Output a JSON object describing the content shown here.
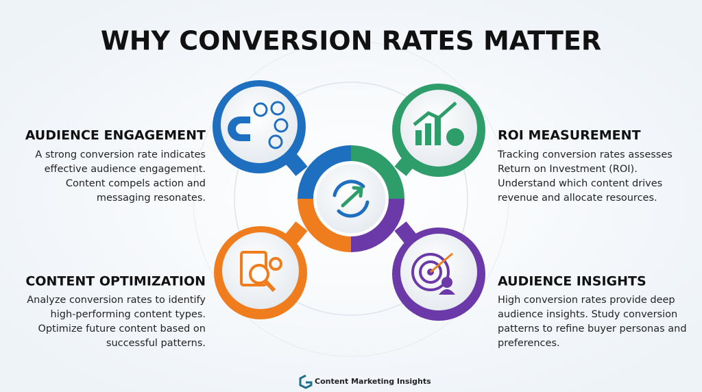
{
  "title": "WHY CONVERSION RATES MATTER",
  "sections": [
    {
      "heading": "AUDIENCE ENGAGEMENT",
      "lines": [
        "A strong conversion rate indicates",
        "effective audience engagement.",
        "Content compels action and",
        "messaging resonates."
      ]
    },
    {
      "heading": "ROI MEASUREMENT",
      "lines": [
        "Tracking conversion rates assesses",
        "Return on Investment (ROI).",
        "Understand which content drives",
        "revenue and allocate resources."
      ]
    },
    {
      "heading": "CONTENT OPTIMIZATION",
      "lines": [
        "Analyze conversion rates to identify",
        "high-performing content types.",
        "Optimize future content based on",
        "successful patterns."
      ]
    },
    {
      "heading": "AUDIENCE INSIGHTS",
      "lines": [
        "High conversion rates provide deep",
        "audience insights. Study conversion",
        "patterns to refine buyer personas and",
        "preferences."
      ]
    }
  ],
  "footer": "Content Marketing Insights"
}
